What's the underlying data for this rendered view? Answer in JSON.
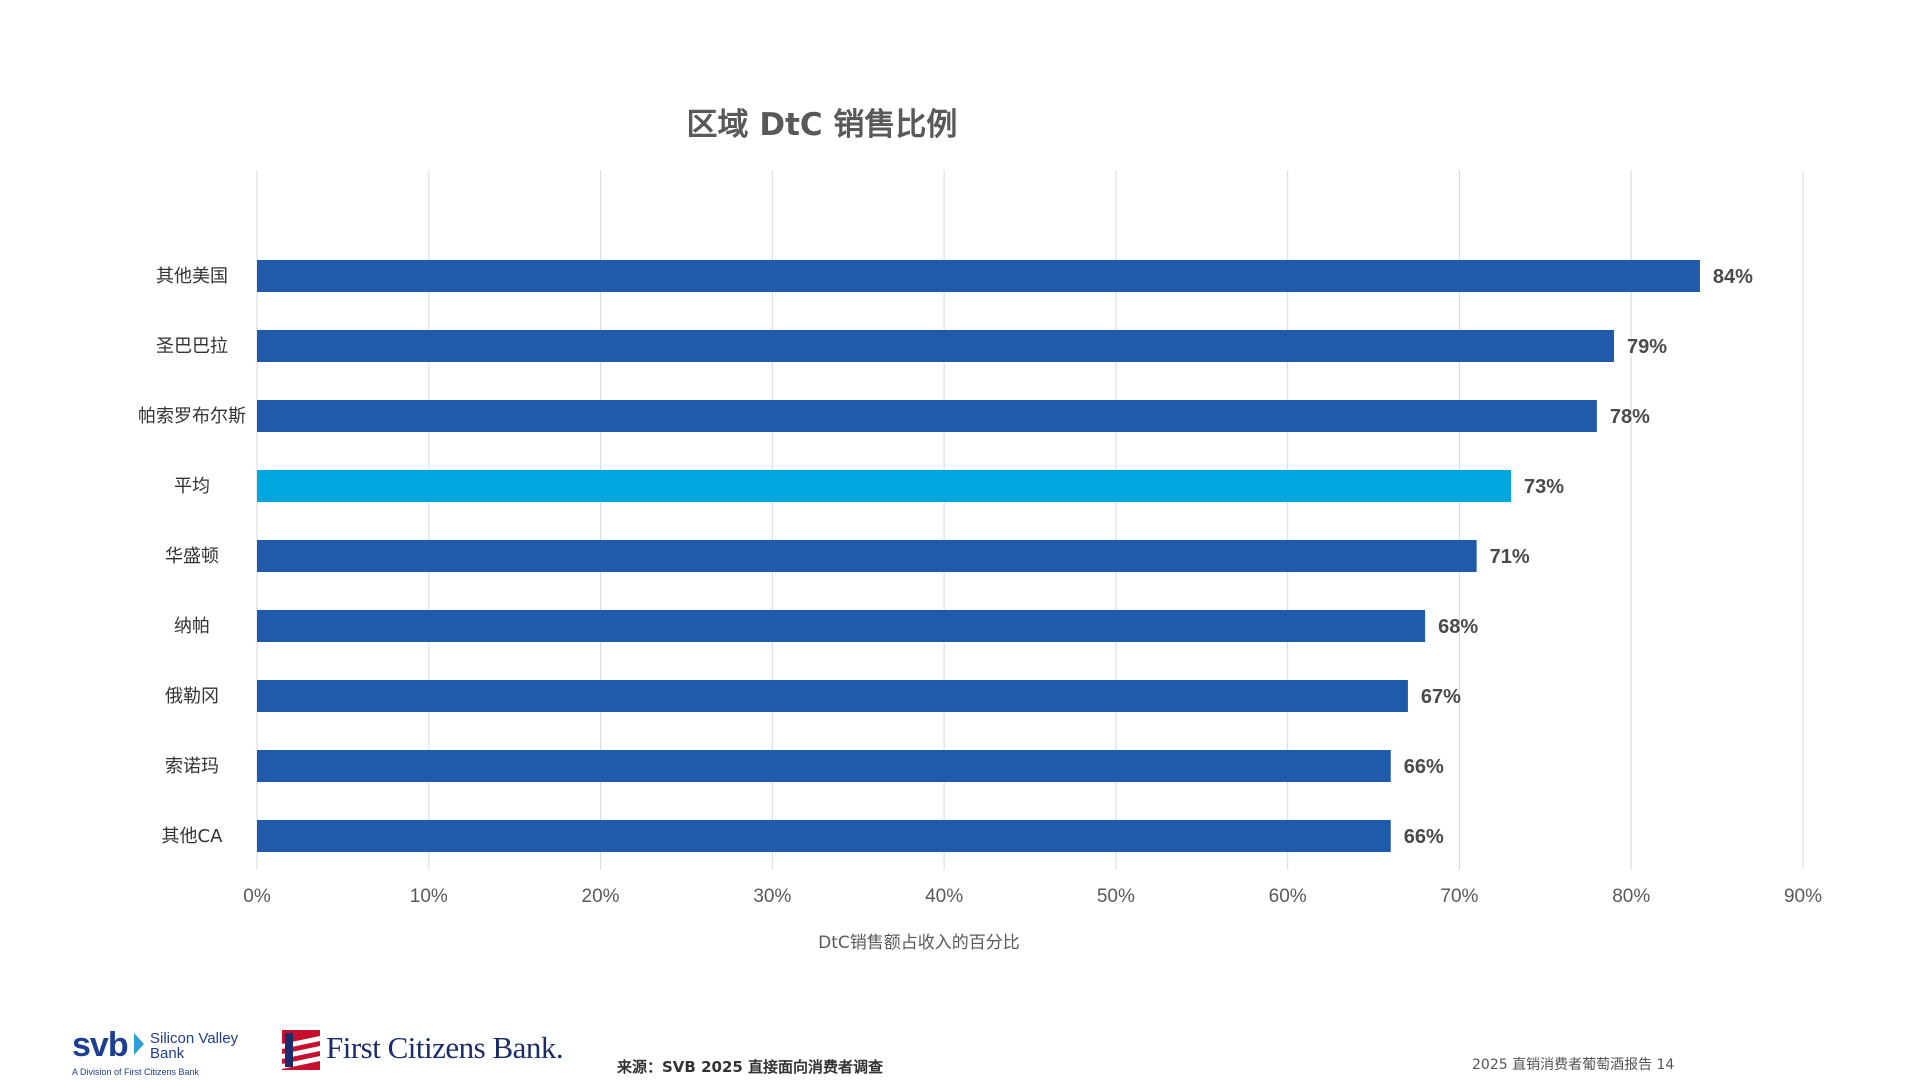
{
  "chart_data": {
    "type": "bar",
    "orientation": "horizontal",
    "title": "区域 DtC 销售比例",
    "xlabel": "DtC销售额占收入的百分比",
    "ylabel": "",
    "categories": [
      "其他美国",
      "圣巴巴拉",
      "帕索罗布尔斯",
      "平均",
      "华盛顿",
      "纳帕",
      "俄勒冈",
      "索诺玛",
      "其他CA"
    ],
    "values": [
      84,
      79,
      78,
      73,
      71,
      68,
      67,
      66,
      66
    ],
    "value_labels": [
      "84%",
      "79%",
      "78%",
      "73%",
      "71%",
      "68%",
      "67%",
      "66%",
      "66%"
    ],
    "highlight_category": "平均",
    "xlim": [
      0,
      90
    ],
    "xticks": [
      0,
      10,
      20,
      30,
      40,
      50,
      60,
      70,
      80,
      90
    ],
    "xtick_labels": [
      "0%",
      "10%",
      "20%",
      "30%",
      "40%",
      "50%",
      "60%",
      "70%",
      "80%",
      "90%"
    ],
    "grid": "vertical",
    "legend": "none",
    "colors": {
      "bar": "#1f5aab",
      "highlight": "#00a6de"
    }
  },
  "footer": {
    "svb_mark": "svb",
    "svb_name_line1": "Silicon Valley",
    "svb_name_line2": "Bank",
    "svb_division": "A Division of First Citizens Bank",
    "fcb_name": "First Citizens Bank.",
    "source": "来源：SVB 2025 直接面向消费者调查",
    "page": "2025 直销消费者葡萄酒报告 14"
  }
}
